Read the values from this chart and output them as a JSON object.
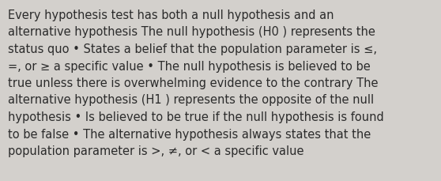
{
  "background_color": "#d3d0cc",
  "text_color": "#2b2b2b",
  "font_size": 10.5,
  "lines": [
    "Every hypothesis test has both a null hypothesis and an",
    "alternative hypothesis The null hypothesis (H0 ) represents the",
    "status quo • States a belief that the population parameter is ≤,",
    "=, or ≥ a specific value • The null hypothesis is believed to be",
    "true unless there is overwhelming evidence to the contrary The",
    "alternative hypothesis (H1 ) represents the opposite of the null",
    "hypothesis • Is believed to be true if the null hypothesis is found",
    "to be false • The alternative hypothesis always states that the",
    "population parameter is >, ≠, or < a specific value"
  ]
}
